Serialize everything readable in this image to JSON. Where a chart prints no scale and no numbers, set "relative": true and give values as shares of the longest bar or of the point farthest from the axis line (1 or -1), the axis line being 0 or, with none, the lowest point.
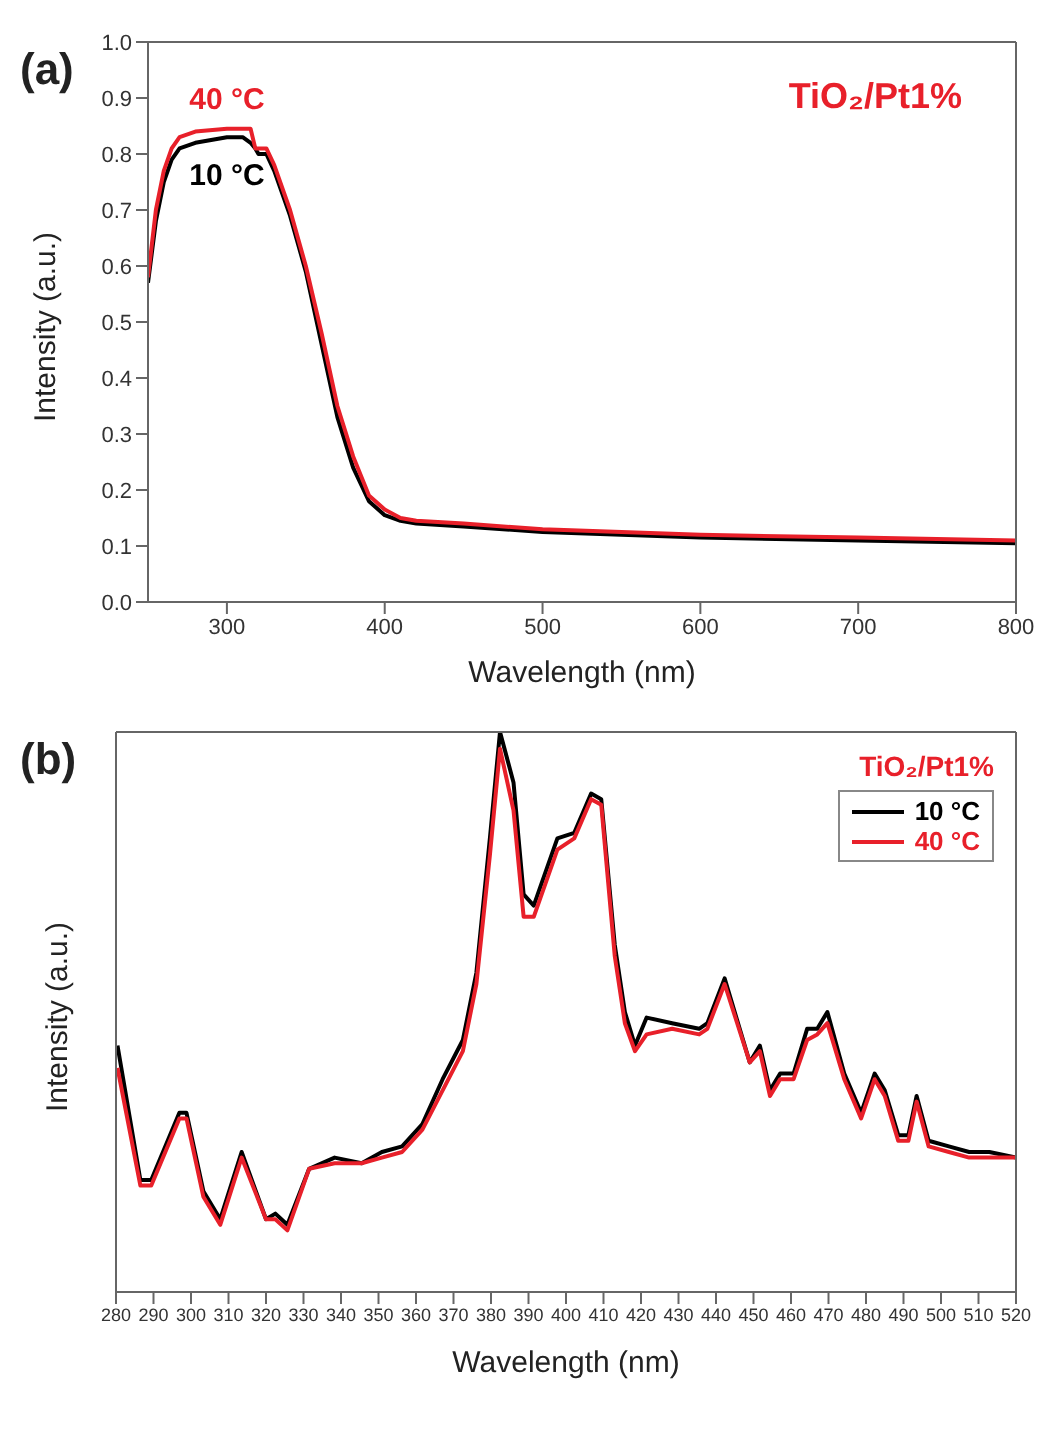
{
  "chart_data": [
    {
      "type": "line",
      "annotations": [
        "(a)",
        "TiO₂/Pt1%"
      ],
      "xlabel": "Wavelength (nm)",
      "ylabel": "Intensity (a.u.)",
      "x": [
        250,
        255,
        260,
        265,
        270,
        280,
        300,
        310,
        315,
        318,
        320,
        325,
        330,
        340,
        350,
        360,
        370,
        380,
        390,
        400,
        410,
        420,
        450,
        500,
        600,
        700,
        800
      ],
      "series": [
        {
          "name": "10 °C",
          "color": "#000000",
          "values": [
            0.57,
            0.68,
            0.75,
            0.79,
            0.81,
            0.82,
            0.83,
            0.83,
            0.82,
            0.81,
            0.8,
            0.8,
            0.77,
            0.69,
            0.59,
            0.46,
            0.33,
            0.24,
            0.18,
            0.155,
            0.145,
            0.14,
            0.135,
            0.125,
            0.115,
            0.11,
            0.105
          ]
        },
        {
          "name": "40 °C",
          "color": "#e8202a",
          "values": [
            0.58,
            0.7,
            0.77,
            0.81,
            0.83,
            0.84,
            0.845,
            0.845,
            0.845,
            0.81,
            0.81,
            0.81,
            0.78,
            0.7,
            0.6,
            0.48,
            0.35,
            0.26,
            0.19,
            0.165,
            0.15,
            0.145,
            0.14,
            0.13,
            0.12,
            0.115,
            0.11
          ]
        }
      ],
      "xlim": [
        250,
        800
      ],
      "xticks": [
        300,
        400,
        500,
        600,
        700,
        800
      ],
      "ylim": [
        0,
        1
      ],
      "yticks": [
        {
          "value": 0,
          "label": "0.0"
        },
        0.1,
        0.2,
        0.3,
        0.4,
        0.5,
        0.6,
        0.7,
        0.8,
        0.9,
        {
          "value": 1,
          "label": "1.0"
        }
      ],
      "legend": false,
      "grid": false
    },
    {
      "type": "line",
      "relative": true,
      "annotations": [
        "(b)",
        "TiO₂/Pt1%"
      ],
      "xlabel": "Wavelength (nm)",
      "ylabel": "Intensity (a.u.)",
      "x": [
        280.4,
        286.5,
        289.4,
        296.9,
        298.8,
        303.3,
        307.8,
        313.5,
        320,
        322.5,
        325.7,
        331.5,
        338.3,
        345.5,
        350.9,
        356.3,
        361.7,
        367.1,
        372.5,
        376.1,
        379.7,
        382.4,
        386,
        388.7,
        391.4,
        397.7,
        402.2,
        406.7,
        409.4,
        413,
        415.7,
        418.4,
        421.5,
        428.3,
        435.5,
        437.7,
        442.3,
        449,
        451.7,
        454.4,
        457.1,
        460.7,
        464.3,
        467,
        469.7,
        474.2,
        478.7,
        482.3,
        485,
        488.6,
        491.3,
        493.5,
        496.7,
        502.1,
        507.5,
        512.9,
        520
      ],
      "series": [
        {
          "name": "10 °C",
          "color": "#000000",
          "values": [
            0.44,
            0.2,
            0.2,
            0.32,
            0.32,
            0.18,
            0.13,
            0.25,
            0.13,
            0.14,
            0.12,
            0.22,
            0.24,
            0.23,
            0.25,
            0.26,
            0.3,
            0.38,
            0.45,
            0.57,
            0.81,
            1,
            0.91,
            0.71,
            0.69,
            0.81,
            0.82,
            0.89,
            0.88,
            0.62,
            0.5,
            0.44,
            0.49,
            0.48,
            0.47,
            0.48,
            0.56,
            0.41,
            0.44,
            0.36,
            0.39,
            0.39,
            0.47,
            0.47,
            0.5,
            0.39,
            0.32,
            0.39,
            0.36,
            0.28,
            0.28,
            0.35,
            0.27,
            0.26,
            0.25,
            0.25,
            0.24
          ]
        },
        {
          "name": "40 °C",
          "color": "#e8202a",
          "values": [
            0.4,
            0.19,
            0.19,
            0.31,
            0.31,
            0.17,
            0.12,
            0.24,
            0.13,
            0.13,
            0.11,
            0.22,
            0.23,
            0.23,
            0.24,
            0.25,
            0.29,
            0.36,
            0.43,
            0.55,
            0.78,
            0.97,
            0.86,
            0.67,
            0.67,
            0.79,
            0.81,
            0.88,
            0.87,
            0.6,
            0.48,
            0.43,
            0.46,
            0.47,
            0.46,
            0.47,
            0.55,
            0.41,
            0.43,
            0.35,
            0.38,
            0.38,
            0.45,
            0.46,
            0.48,
            0.38,
            0.31,
            0.38,
            0.35,
            0.27,
            0.27,
            0.34,
            0.26,
            0.25,
            0.24,
            0.24,
            0.24
          ]
        }
      ],
      "xlim": [
        280,
        520
      ],
      "xticks": [
        280,
        290,
        300,
        310,
        320,
        330,
        340,
        350,
        360,
        370,
        380,
        390,
        400,
        410,
        420,
        430,
        440,
        450,
        460,
        470,
        480,
        490,
        500,
        510,
        520
      ],
      "legend": "top right",
      "grid": false
    }
  ]
}
